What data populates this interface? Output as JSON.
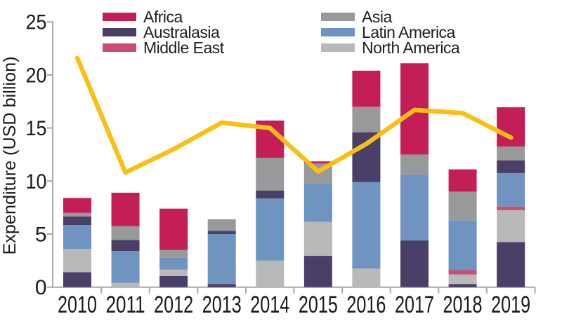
{
  "chart_data": {
    "type": "bar",
    "subtype": "stacked-bar-with-line-overlay",
    "ylabel": "Expenditure (USD billion)",
    "categories": [
      "2010",
      "2011",
      "2012",
      "2013",
      "2014",
      "2015",
      "2016",
      "2017",
      "2018",
      "2019"
    ],
    "y_ticks": [
      0,
      5,
      10,
      15,
      20,
      25
    ],
    "ylim": [
      0,
      25
    ],
    "grid": false,
    "palette": {
      "africa": "#c41e58",
      "australasia": "#4a4067",
      "middle_east": "#cc4d73",
      "asia": "#98999b",
      "latin_america": "#6e94bf",
      "north_america": "#b7b9bb"
    },
    "legend": {
      "left_column": [
        {
          "label": "Africa",
          "key": "africa"
        },
        {
          "label": "Australasia",
          "key": "australasia"
        },
        {
          "label": "Middle East",
          "key": "middle_east"
        }
      ],
      "right_column": [
        {
          "label": "Asia",
          "key": "asia"
        },
        {
          "label": "Latin America",
          "key": "latin_america"
        },
        {
          "label": "North America",
          "key": "north_america"
        }
      ]
    },
    "bars": [
      {
        "year": "2010",
        "total": 8.4,
        "segments": [
          {
            "region": "australasia",
            "value": 1.4
          },
          {
            "region": "north_america",
            "value": 2.2
          },
          {
            "region": "latin_america",
            "value": 2.25
          },
          {
            "region": "australasia",
            "value": 0.8
          },
          {
            "region": "asia",
            "value": 0.35
          },
          {
            "region": "africa",
            "value": 1.4
          }
        ]
      },
      {
        "year": "2011",
        "total": 8.9,
        "segments": [
          {
            "region": "north_america",
            "value": 0.4
          },
          {
            "region": "latin_america",
            "value": 3.0
          },
          {
            "region": "australasia",
            "value": 1.05
          },
          {
            "region": "asia",
            "value": 1.3
          },
          {
            "region": "africa",
            "value": 3.15
          }
        ]
      },
      {
        "year": "2012",
        "total": 7.4,
        "segments": [
          {
            "region": "australasia",
            "value": 1.05
          },
          {
            "region": "north_america",
            "value": 0.6
          },
          {
            "region": "latin_america",
            "value": 1.15
          },
          {
            "region": "asia",
            "value": 0.7
          },
          {
            "region": "africa",
            "value": 3.9
          }
        ]
      },
      {
        "year": "2013",
        "total": 6.4,
        "segments": [
          {
            "region": "australasia",
            "value": 0.3
          },
          {
            "region": "latin_america",
            "value": 4.7
          },
          {
            "region": "australasia",
            "value": 0.3
          },
          {
            "region": "asia",
            "value": 1.1
          }
        ]
      },
      {
        "year": "2014",
        "total": 15.7,
        "segments": [
          {
            "region": "north_america",
            "value": 2.5
          },
          {
            "region": "latin_america",
            "value": 5.85
          },
          {
            "region": "australasia",
            "value": 0.75
          },
          {
            "region": "asia",
            "value": 3.1
          },
          {
            "region": "africa",
            "value": 3.5
          }
        ]
      },
      {
        "year": "2015",
        "total": 11.85,
        "segments": [
          {
            "region": "australasia",
            "value": 2.95
          },
          {
            "region": "north_america",
            "value": 3.2
          },
          {
            "region": "latin_america",
            "value": 3.6
          },
          {
            "region": "asia",
            "value": 1.9
          },
          {
            "region": "africa",
            "value": 0.2
          }
        ]
      },
      {
        "year": "2016",
        "total": 20.4,
        "segments": [
          {
            "region": "north_america",
            "value": 1.75
          },
          {
            "region": "latin_america",
            "value": 8.15
          },
          {
            "region": "australasia",
            "value": 4.7
          },
          {
            "region": "asia",
            "value": 2.4
          },
          {
            "region": "africa",
            "value": 3.4
          }
        ]
      },
      {
        "year": "2017",
        "total": 21.1,
        "segments": [
          {
            "region": "australasia",
            "value": 4.4
          },
          {
            "region": "latin_america",
            "value": 6.2
          },
          {
            "region": "asia",
            "value": 1.9
          },
          {
            "region": "africa",
            "value": 8.6
          }
        ]
      },
      {
        "year": "2018",
        "total": 11.1,
        "segments": [
          {
            "region": "australasia",
            "value": 0.3
          },
          {
            "region": "north_america",
            "value": 0.9
          },
          {
            "region": "middle_east",
            "value": 0.4
          },
          {
            "region": "latin_america",
            "value": 4.7
          },
          {
            "region": "asia",
            "value": 2.7
          },
          {
            "region": "africa",
            "value": 2.1
          }
        ]
      },
      {
        "year": "2019",
        "total": 16.95,
        "segments": [
          {
            "region": "australasia",
            "value": 4.25
          },
          {
            "region": "north_america",
            "value": 3.0
          },
          {
            "region": "middle_east",
            "value": 0.35
          },
          {
            "region": "latin_america",
            "value": 3.15
          },
          {
            "region": "australasia",
            "value": 1.2
          },
          {
            "region": "asia",
            "value": 1.3
          },
          {
            "region": "africa",
            "value": 3.7
          }
        ]
      }
    ],
    "line": {
      "values": [
        21.6,
        10.8,
        13.0,
        15.5,
        15.0,
        10.9,
        13.5,
        16.7,
        16.4,
        14.1
      ],
      "color": "#fbbf14"
    },
    "axis_color": "#a7a9ab",
    "text_color": "#1a1a1a"
  }
}
